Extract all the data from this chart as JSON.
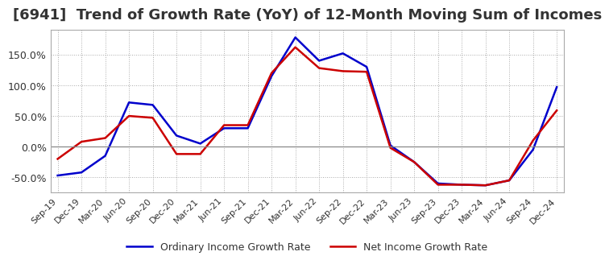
{
  "title": "[6941]  Trend of Growth Rate (YoY) of 12-Month Moving Sum of Incomes",
  "ylim": [
    -75,
    190
  ],
  "yticks": [
    -50,
    0,
    50,
    100,
    150
  ],
  "ytick_labels": [
    "-50.0%",
    "0.0%",
    "50.0%",
    "100.0%",
    "150.0%"
  ],
  "line_color_ordinary": "#0000CC",
  "line_color_net": "#CC0000",
  "legend_ordinary": "Ordinary Income Growth Rate",
  "legend_net": "Net Income Growth Rate",
  "background_color": "#FFFFFF",
  "grid_color": "#AAAAAA",
  "title_fontsize": 13,
  "x_labels": [
    "Sep-19",
    "Dec-19",
    "Mar-20",
    "Jun-20",
    "Sep-20",
    "Dec-20",
    "Mar-21",
    "Jun-21",
    "Sep-21",
    "Dec-21",
    "Mar-22",
    "Jun-22",
    "Sep-22",
    "Dec-22",
    "Mar-23",
    "Jun-23",
    "Sep-23",
    "Dec-23",
    "Mar-24",
    "Jun-24",
    "Sep-24",
    "Dec-24"
  ],
  "ordinary_income": [
    -47,
    -42,
    -15,
    72,
    68,
    18,
    5,
    30,
    30,
    115,
    178,
    140,
    152,
    130,
    2,
    -25,
    -60,
    -62,
    -63,
    -55,
    -5,
    97
  ],
  "net_income": [
    -20,
    8,
    14,
    50,
    47,
    -12,
    -12,
    35,
    35,
    120,
    162,
    128,
    123,
    122,
    -2,
    -25,
    -62,
    -62,
    -63,
    -55,
    10,
    59
  ]
}
